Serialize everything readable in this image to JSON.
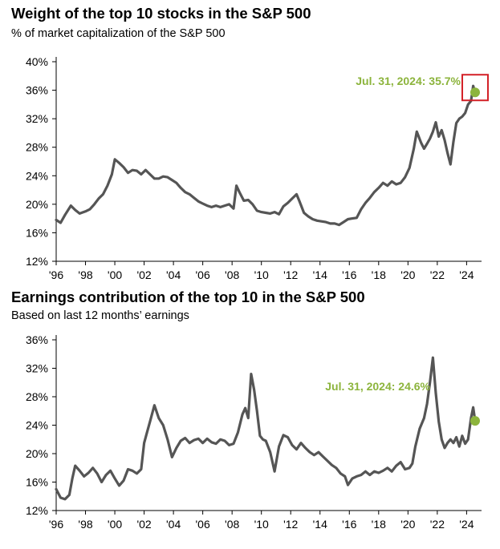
{
  "colors": {
    "line": "#555555",
    "accent": "#8cb43c",
    "highlight": "#d32027",
    "axis": "#000000"
  },
  "chart_data": [
    {
      "type": "line",
      "title": "Weight of the top 10 stocks in the S&P 500",
      "subtitle": "% of market capitalization of the S&P 500",
      "x_tick_labels": [
        "'96",
        "'98",
        "'00",
        "'02",
        "'04",
        "'06",
        "'08",
        "'10",
        "'12",
        "'14",
        "'16",
        "'18",
        "'20",
        "'22",
        "'24"
      ],
      "x_tick_years": [
        1996,
        1998,
        2000,
        2002,
        2004,
        2006,
        2008,
        2010,
        2012,
        2014,
        2016,
        2018,
        2020,
        2022,
        2024
      ],
      "xlim": [
        1996,
        2024.8
      ],
      "ylim": [
        12,
        40
      ],
      "y_ticks": [
        12,
        16,
        20,
        24,
        28,
        32,
        36,
        40
      ],
      "y_tick_labels": [
        "12%",
        "16%",
        "20%",
        "24%",
        "28%",
        "32%",
        "36%",
        "40%"
      ],
      "annotation": {
        "text": "Jul. 31, 2024: 35.7%",
        "x": 2024.58,
        "y": 35.7
      },
      "series": [
        {
          "x": [
            1996.0,
            1996.3,
            1996.6,
            1997.0,
            1997.3,
            1997.6,
            1998.0,
            1998.3,
            1998.6,
            1998.9,
            1999.2,
            1999.5,
            1999.8,
            2000.0,
            2000.3,
            2000.6,
            2000.9,
            2001.2,
            2001.5,
            2001.8,
            2002.1,
            2002.4,
            2002.7,
            2003.0,
            2003.3,
            2003.6,
            2003.9,
            2004.2,
            2004.5,
            2004.8,
            2005.1,
            2005.4,
            2005.7,
            2006.0,
            2006.3,
            2006.6,
            2006.9,
            2007.2,
            2007.5,
            2007.8,
            2008.1,
            2008.3,
            2008.5,
            2008.8,
            2009.1,
            2009.4,
            2009.7,
            2010.0,
            2010.3,
            2010.6,
            2010.9,
            2011.2,
            2011.5,
            2011.8,
            2012.1,
            2012.4,
            2012.6,
            2012.9,
            2013.2,
            2013.5,
            2013.8,
            2014.1,
            2014.4,
            2014.7,
            2015.0,
            2015.3,
            2015.6,
            2015.9,
            2016.2,
            2016.5,
            2016.8,
            2017.1,
            2017.4,
            2017.7,
            2018.0,
            2018.3,
            2018.6,
            2018.9,
            2019.2,
            2019.5,
            2019.8,
            2020.1,
            2020.4,
            2020.6,
            2020.9,
            2021.1,
            2021.3,
            2021.5,
            2021.7,
            2021.9,
            2022.1,
            2022.3,
            2022.5,
            2022.7,
            2022.9,
            2023.1,
            2023.3,
            2023.5,
            2023.7,
            2023.9,
            2024.1,
            2024.3,
            2024.45,
            2024.58
          ],
          "y": [
            17.8,
            17.4,
            18.5,
            19.8,
            19.2,
            18.7,
            19.0,
            19.3,
            20.0,
            20.8,
            21.4,
            22.6,
            24.2,
            26.3,
            25.8,
            25.2,
            24.4,
            24.8,
            24.7,
            24.2,
            24.8,
            24.2,
            23.6,
            23.6,
            23.9,
            23.8,
            23.4,
            23.0,
            22.3,
            21.7,
            21.4,
            20.9,
            20.4,
            20.1,
            19.8,
            19.6,
            19.8,
            19.6,
            19.8,
            20.0,
            19.4,
            22.6,
            21.7,
            20.5,
            20.6,
            20.0,
            19.1,
            18.9,
            18.8,
            18.7,
            18.9,
            18.6,
            19.7,
            20.2,
            20.8,
            21.4,
            20.4,
            18.8,
            18.3,
            17.9,
            17.7,
            17.6,
            17.5,
            17.3,
            17.3,
            17.1,
            17.5,
            17.9,
            18.0,
            18.1,
            19.3,
            20.2,
            20.9,
            21.7,
            22.3,
            23.0,
            22.6,
            23.2,
            22.8,
            23.0,
            23.8,
            25.1,
            27.8,
            30.2,
            28.6,
            27.8,
            28.5,
            29.2,
            30.2,
            31.5,
            29.5,
            30.4,
            29.0,
            27.2,
            25.6,
            28.8,
            31.4,
            32.0,
            32.3,
            32.8,
            34.0,
            34.5,
            36.6,
            35.7
          ]
        }
      ]
    },
    {
      "type": "line",
      "title": "Earnings contribution of the top 10 in the S&P 500",
      "subtitle": "Based on last 12 months’ earnings",
      "x_tick_labels": [
        "'96",
        "'98",
        "'00",
        "'02",
        "'04",
        "'06",
        "'08",
        "'10",
        "'12",
        "'14",
        "'16",
        "'18",
        "'20",
        "'22",
        "'24"
      ],
      "x_tick_years": [
        1996,
        1998,
        2000,
        2002,
        2004,
        2006,
        2008,
        2010,
        2012,
        2014,
        2016,
        2018,
        2020,
        2022,
        2024
      ],
      "xlim": [
        1996,
        2024.8
      ],
      "ylim": [
        12,
        36
      ],
      "y_ticks": [
        12,
        16,
        20,
        24,
        28,
        32,
        36
      ],
      "y_tick_labels": [
        "12%",
        "16%",
        "20%",
        "24%",
        "28%",
        "32%",
        "36%"
      ],
      "annotation": {
        "text": "Jul. 31, 2024: 24.6%",
        "x": 2024.58,
        "y": 24.6
      },
      "series": [
        {
          "x": [
            1996.0,
            1996.3,
            1996.6,
            1996.9,
            1997.1,
            1997.3,
            1997.6,
            1997.9,
            1998.2,
            1998.5,
            1998.8,
            1999.1,
            1999.4,
            1999.7,
            2000.0,
            2000.3,
            2000.6,
            2000.9,
            2001.2,
            2001.5,
            2001.8,
            2002.0,
            2002.2,
            2002.4,
            2002.7,
            2003.0,
            2003.3,
            2003.6,
            2003.9,
            2004.2,
            2004.5,
            2004.8,
            2005.1,
            2005.4,
            2005.7,
            2006.0,
            2006.3,
            2006.6,
            2006.9,
            2007.2,
            2007.5,
            2007.8,
            2008.1,
            2008.4,
            2008.7,
            2008.9,
            2009.1,
            2009.3,
            2009.5,
            2009.7,
            2009.9,
            2010.1,
            2010.3,
            2010.6,
            2010.9,
            2011.2,
            2011.5,
            2011.8,
            2012.1,
            2012.4,
            2012.7,
            2013.0,
            2013.3,
            2013.6,
            2013.9,
            2014.2,
            2014.5,
            2014.8,
            2015.1,
            2015.4,
            2015.7,
            2015.9,
            2016.2,
            2016.5,
            2016.8,
            2017.1,
            2017.4,
            2017.7,
            2018.0,
            2018.3,
            2018.6,
            2018.9,
            2019.2,
            2019.5,
            2019.8,
            2020.1,
            2020.3,
            2020.5,
            2020.8,
            2021.1,
            2021.3,
            2021.5,
            2021.7,
            2021.9,
            2022.1,
            2022.3,
            2022.5,
            2022.7,
            2022.9,
            2023.1,
            2023.3,
            2023.5,
            2023.7,
            2023.9,
            2024.1,
            2024.3,
            2024.45,
            2024.58
          ],
          "y": [
            15.0,
            13.8,
            13.6,
            14.2,
            16.5,
            18.3,
            17.6,
            16.8,
            17.3,
            18.0,
            17.2,
            16.0,
            17.0,
            17.6,
            16.5,
            15.5,
            16.2,
            17.8,
            17.6,
            17.2,
            17.8,
            21.5,
            23.0,
            24.5,
            26.8,
            25.0,
            24.0,
            22.0,
            19.5,
            20.8,
            21.8,
            22.2,
            21.5,
            21.9,
            22.1,
            21.5,
            22.1,
            21.6,
            21.4,
            22.0,
            21.8,
            21.2,
            21.4,
            23.0,
            25.5,
            26.4,
            25.0,
            31.2,
            29.0,
            26.0,
            22.5,
            22.0,
            21.8,
            20.2,
            17.5,
            21.0,
            22.6,
            22.3,
            21.2,
            20.6,
            21.5,
            20.8,
            20.2,
            19.8,
            20.2,
            19.6,
            19.0,
            18.4,
            18.0,
            17.2,
            16.8,
            15.6,
            16.5,
            16.8,
            17.0,
            17.5,
            17.0,
            17.5,
            17.3,
            17.6,
            18.0,
            17.5,
            18.3,
            18.8,
            17.8,
            18.0,
            18.6,
            21.0,
            23.5,
            25.0,
            27.0,
            30.0,
            33.5,
            28.5,
            24.5,
            22.0,
            20.8,
            21.5,
            22.0,
            21.5,
            22.3,
            21.0,
            22.5,
            21.4,
            22.0,
            25.0,
            26.5,
            24.6
          ]
        }
      ]
    }
  ]
}
